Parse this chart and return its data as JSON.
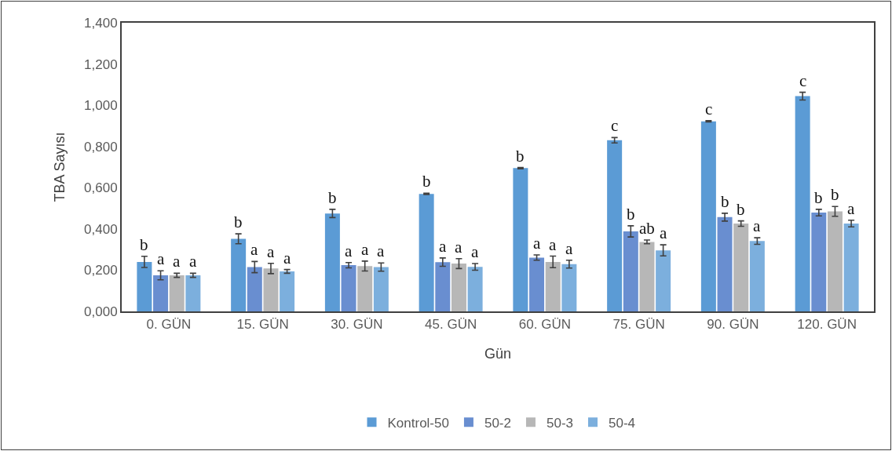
{
  "chart_data": {
    "type": "bar",
    "categories": [
      "0. GÜN",
      "15. GÜN",
      "30. GÜN",
      "45. GÜN",
      "60. GÜN",
      "75. GÜN",
      "90. GÜN",
      "120. GÜN"
    ],
    "xlabel": "Gün",
    "ylabel": "TBA Sayısı",
    "ylim": [
      0,
      1.4
    ],
    "yticks": [
      {
        "value": 0,
        "label": "0,000"
      },
      {
        "value": 0.2,
        "label": "0,200"
      },
      {
        "value": 0.4,
        "label": "0,400"
      },
      {
        "value": 0.6,
        "label": "0,600"
      },
      {
        "value": 0.8,
        "label": "0,800"
      },
      {
        "value": 1.0,
        "label": "1,000"
      },
      {
        "value": 1.2,
        "label": "1,200"
      },
      {
        "value": 1.4,
        "label": "1,400"
      }
    ],
    "legend": "bottom",
    "series": [
      {
        "name": "Kontrol-50",
        "color": "#5b9bd5",
        "values": [
          0.24,
          0.352,
          0.475,
          0.57,
          0.695,
          0.83,
          0.922,
          1.044
        ],
        "errors": [
          0.027,
          0.024,
          0.02,
          0.003,
          0.003,
          0.013,
          0.003,
          0.019
        ],
        "value_labels": [
          "b",
          "b",
          "b",
          "b",
          "b",
          "c",
          "c",
          "c"
        ]
      },
      {
        "name": "50-2",
        "color": "#698ed0",
        "values": [
          0.175,
          0.215,
          0.224,
          0.239,
          0.261,
          0.388,
          0.457,
          0.479
        ],
        "errors": [
          0.022,
          0.027,
          0.013,
          0.02,
          0.013,
          0.027,
          0.019,
          0.016
        ],
        "value_labels": [
          "a",
          "a",
          "a",
          "a",
          "a",
          "b",
          "b",
          "b"
        ]
      },
      {
        "name": "50-3",
        "color": "#b7b7b7",
        "values": [
          0.175,
          0.208,
          0.22,
          0.232,
          0.24,
          0.337,
          0.426,
          0.485
        ],
        "errors": [
          0.01,
          0.025,
          0.024,
          0.024,
          0.028,
          0.009,
          0.013,
          0.024
        ],
        "value_labels": [
          "a",
          "a",
          "a",
          "a",
          "a",
          "ab",
          "b",
          "b"
        ]
      },
      {
        "name": "50-4",
        "color": "#7cafdd",
        "values": [
          0.175,
          0.194,
          0.215,
          0.216,
          0.229,
          0.296,
          0.341,
          0.426
        ],
        "errors": [
          0.01,
          0.009,
          0.02,
          0.016,
          0.019,
          0.027,
          0.016,
          0.016
        ],
        "value_labels": [
          "a",
          "a",
          "a",
          "a",
          "a",
          "a",
          "a",
          "a"
        ]
      }
    ]
  }
}
